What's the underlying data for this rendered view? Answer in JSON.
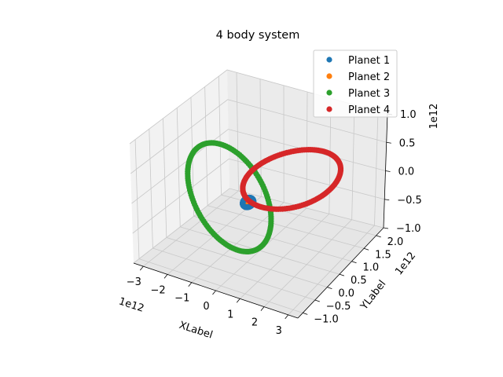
{
  "chart_data": {
    "type": "scatter",
    "projection": "3d",
    "title": "4 body system",
    "xlabel": "XLabel",
    "ylabel": "YLabel",
    "zlabel": "",
    "x_offset_label": "1e12",
    "y_offset_label": "1e12",
    "z_offset_label": "1e12",
    "x_ticks": [
      "−3",
      "−2",
      "−1",
      "0",
      "1",
      "2",
      "3"
    ],
    "y_ticks": [
      "−1.0",
      "−0.5",
      "0.0",
      "0.5",
      "1.0",
      "1.5",
      "2.0"
    ],
    "z_ticks": [
      "−1.0",
      "−0.5",
      "0.0",
      "0.5",
      "1.0"
    ],
    "xlim": [
      -3.4,
      3.4
    ],
    "ylim": [
      -1.2,
      2.3
    ],
    "zlim": [
      -1.0,
      1.0
    ],
    "grid": true,
    "legend_position": "top-right",
    "series": [
      {
        "name": "Planet 1",
        "color": "#1f77b4",
        "orbit": {
          "center": [
            0.05,
            0.02,
            0.0
          ],
          "semi_axis_1": [
            0.2,
            0.0,
            0.0
          ],
          "semi_axis_2": [
            0.0,
            0.1,
            0.04
          ]
        }
      },
      {
        "name": "Planet 2",
        "color": "#ff7f0e",
        "orbit": {
          "center": [
            0.05,
            0.02,
            0.0
          ],
          "semi_axis_1": [
            0.15,
            0.0,
            0.0
          ],
          "semi_axis_2": [
            0.0,
            0.08,
            0.03
          ]
        }
      },
      {
        "name": "Planet 3",
        "color": "#2ca02c",
        "orbit": {
          "center": [
            -0.7,
            0.0,
            0.0
          ],
          "semi_axis_1": [
            0.0,
            -0.3,
            1.0
          ],
          "semi_axis_2": [
            1.7,
            0.0,
            0.0
          ]
        }
      },
      {
        "name": "Planet 4",
        "color": "#d62728",
        "orbit": {
          "center": [
            0.6,
            1.2,
            0.0
          ],
          "semi_axis_1": [
            0.0,
            1.2,
            0.0
          ],
          "semi_axis_2": [
            1.6,
            0.0,
            0.0
          ]
        }
      }
    ]
  }
}
